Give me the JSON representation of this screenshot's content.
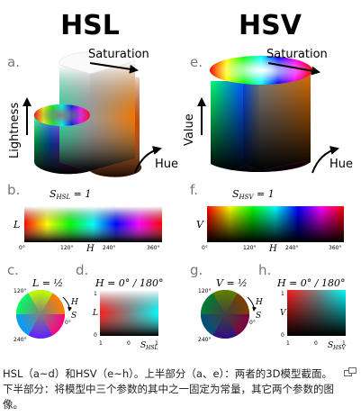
{
  "titles": {
    "hsl": "HSL",
    "hsv": "HSV"
  },
  "panel_letters": [
    "a.",
    "b.",
    "c.",
    "d.",
    "e.",
    "f.",
    "g.",
    "h."
  ],
  "cylinder_labels": {
    "saturation": "Saturation",
    "lightness": "Lightness",
    "value": "Value",
    "hue": "Hue"
  },
  "strip_labels": {
    "s_hsl_eq": "S",
    "hsl_sub": "HSL",
    "hsv_sub": "HSV",
    "eq_one": " = 1",
    "ylabel_L": "L",
    "ylabel_V": "V",
    "xlabel_H": "H",
    "ticks": [
      "0°",
      "120°",
      "240°",
      "360°"
    ]
  },
  "bottom_labels": {
    "c_title": "L = ½",
    "g_title": "V = ½",
    "d_title": "H = 0° / 180°",
    "h_title": "H = 0° / 180°",
    "wheel_ticks": [
      "120°",
      "240°",
      "0°"
    ],
    "wheel_H": "H",
    "wheel_S": "S",
    "sq_one": "1",
    "sq_zero": "0",
    "sq_L": "L",
    "sq_V": "V",
    "sq_S_hsl": "S",
    "sq_S_hsv": "S",
    "sub_hsl": "HSL",
    "sub_hsv": "HSV"
  },
  "caption": {
    "text": "HSL（a~d）和HSV（e~h）。上半部分（a、e）：两者的3D模型截面。下半部分：将模型中三个参数的其中之一固定为常量，其它两个参数的图像。",
    "magnify_icon": "magnify-icon"
  }
}
